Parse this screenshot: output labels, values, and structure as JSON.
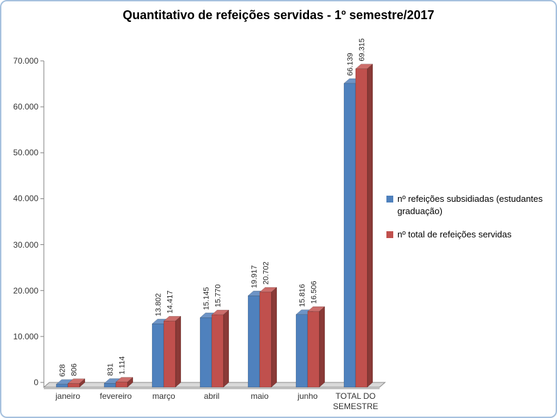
{
  "chart_data": {
    "type": "bar",
    "title": "Quantitativo de refeições servidas - 1º semestre/2017",
    "categories": [
      "janeiro",
      "fevereiro",
      "março",
      "abril",
      "maio",
      "junho",
      "TOTAL DO SEMESTRE"
    ],
    "series": [
      {
        "name": "nº refeições subsidiadas (estudantes graduação)",
        "color": "#4F81BD",
        "color_top": "#6D94C6",
        "color_side": "#35597F",
        "values": [
          628,
          831,
          13802,
          15145,
          19917,
          15816,
          66139
        ],
        "labels": [
          "628",
          "831",
          "13.802",
          "15.145",
          "19.917",
          "15.816",
          "66.139"
        ]
      },
      {
        "name": "nº total de refeições servidas",
        "color": "#C0504D",
        "color_top": "#CC6E6B",
        "color_side": "#8A3A37",
        "values": [
          806,
          1114,
          14417,
          15770,
          20702,
          16506,
          69315
        ],
        "labels": [
          "806",
          "1.114",
          "14.417",
          "15.770",
          "20.702",
          "16.506",
          "69.315"
        ]
      }
    ],
    "y_ticks": [
      "0",
      "10.000",
      "20.000",
      "30.000",
      "40.000",
      "50.000",
      "60.000",
      "70.000"
    ],
    "ylim": [
      0,
      70000
    ],
    "grid": false,
    "legend_position": "right",
    "style": "3d-clustered-bar",
    "floor_color": "#D9D9D9",
    "axis_color": "#808080",
    "label_color": "#262626"
  }
}
